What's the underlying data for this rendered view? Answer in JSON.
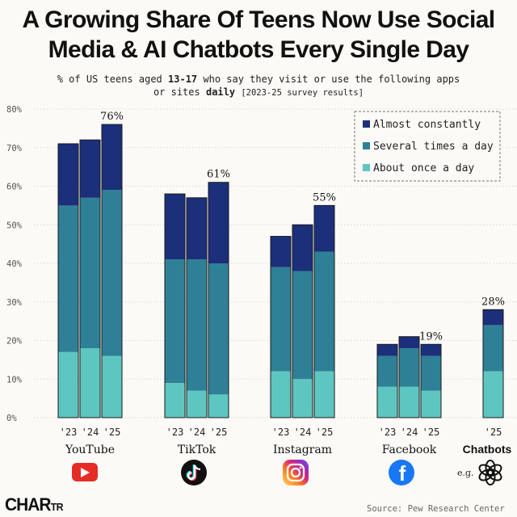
{
  "title_line1": "A Growing Share Of Teens Now Use Social",
  "title_line2": "Media & AI Chatbots Every Single Day",
  "subtitle": {
    "pre": "% of US teens aged ",
    "ages": "13-17",
    "mid": " who say they visit or use the following apps or sites ",
    "daily": "daily",
    "note": "[2023-25 survey results]"
  },
  "brand": {
    "main": "CHAR",
    "sub": "TR"
  },
  "source": "Source: Pew Research Center",
  "chatbots_example": "e.g.",
  "colors": {
    "almost_constantly": "#1c2f7b",
    "several_times": "#2e8096",
    "once_a_day": "#5ec6c0",
    "youtube": "#e52d27",
    "facebook": "#1877f2"
  },
  "icons": {
    "YouTube": "youtube-icon",
    "TikTok": "tiktok-icon",
    "Instagram": "instagram-icon",
    "Facebook": "facebook-icon",
    "Chatbots": "chatgpt-icon"
  },
  "chart_data": {
    "type": "bar",
    "stacked": true,
    "title": "A Growing Share Of Teens Now Use Social Media & AI Chatbots Every Single Day",
    "ylim": [
      0,
      80
    ],
    "yticks": [
      "0%",
      "10%",
      "20%",
      "30%",
      "40%",
      "50%",
      "60%",
      "70%",
      "80%"
    ],
    "grid": true,
    "legend_position": "top-right",
    "series_names": [
      "Almost constantly",
      "Several times a day",
      "About once a day"
    ],
    "groups": [
      {
        "name": "YouTube",
        "bars": [
          {
            "year": "'23",
            "once": 17,
            "several": 38,
            "constant": 16,
            "total": 71
          },
          {
            "year": "'24",
            "once": 18,
            "several": 39,
            "constant": 15,
            "total": 72
          },
          {
            "year": "'25",
            "once": 16,
            "several": 43,
            "constant": 17,
            "total": 76,
            "label": "76%"
          }
        ]
      },
      {
        "name": "TikTok",
        "bars": [
          {
            "year": "'23",
            "once": 9,
            "several": 32,
            "constant": 17,
            "total": 58
          },
          {
            "year": "'24",
            "once": 7,
            "several": 34,
            "constant": 16,
            "total": 57
          },
          {
            "year": "'25",
            "once": 6,
            "several": 34,
            "constant": 21,
            "total": 61,
            "label": "61%"
          }
        ]
      },
      {
        "name": "Instagram",
        "bars": [
          {
            "year": "'23",
            "once": 12,
            "several": 27,
            "constant": 8,
            "total": 47
          },
          {
            "year": "'24",
            "once": 10,
            "several": 28,
            "constant": 12,
            "total": 50
          },
          {
            "year": "'25",
            "once": 12,
            "several": 31,
            "constant": 12,
            "total": 55,
            "label": "55%"
          }
        ]
      },
      {
        "name": "Facebook",
        "bars": [
          {
            "year": "'23",
            "once": 8,
            "several": 8,
            "constant": 3,
            "total": 19
          },
          {
            "year": "'24",
            "once": 8,
            "several": 10,
            "constant": 3,
            "total": 21
          },
          {
            "year": "'25",
            "once": 7,
            "several": 9,
            "constant": 3,
            "total": 19,
            "label": "19%"
          }
        ]
      },
      {
        "name": "Chatbots",
        "bars": [
          {
            "year": "'25",
            "once": 12,
            "several": 12,
            "constant": 4,
            "total": 28,
            "label": "28%"
          }
        ]
      }
    ]
  }
}
